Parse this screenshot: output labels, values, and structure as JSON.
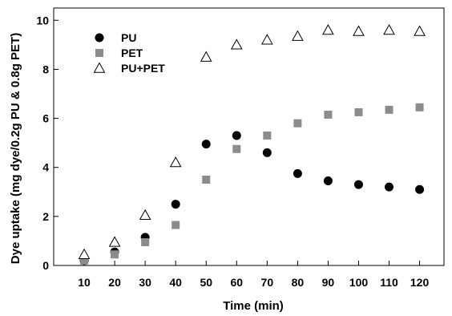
{
  "chart_data": {
    "type": "scatter",
    "xlabel": "Time (min)",
    "ylabel": "Dye uptake (mg dye/0.2g PU & 0.8g PET)",
    "x": [
      10,
      20,
      30,
      40,
      50,
      60,
      70,
      80,
      90,
      100,
      110,
      120
    ],
    "xlim": [
      0,
      128
    ],
    "ylim": [
      0,
      10.5
    ],
    "xticks": [
      10,
      20,
      30,
      40,
      50,
      60,
      70,
      80,
      90,
      100,
      110,
      120
    ],
    "yticks": [
      0,
      2,
      4,
      6,
      8,
      10
    ],
    "grid": false,
    "legend_position": "top-left",
    "series": [
      {
        "name": "PU",
        "marker": "circle",
        "color": "#000000",
        "values": [
          0.2,
          0.55,
          1.15,
          2.5,
          4.95,
          5.3,
          4.6,
          3.75,
          3.45,
          3.3,
          3.2,
          3.1
        ]
      },
      {
        "name": "PET",
        "marker": "square",
        "color": "#8c8c8c",
        "values": [
          0.2,
          0.45,
          0.95,
          1.65,
          3.5,
          4.75,
          5.3,
          5.8,
          6.15,
          6.25,
          6.35,
          6.45
        ]
      },
      {
        "name": "PU+PET",
        "marker": "triangle-open",
        "color": "#000000",
        "values": [
          0.45,
          0.95,
          2.05,
          4.2,
          8.5,
          9.0,
          9.2,
          9.35,
          9.6,
          9.55,
          9.6,
          9.55
        ]
      }
    ]
  }
}
